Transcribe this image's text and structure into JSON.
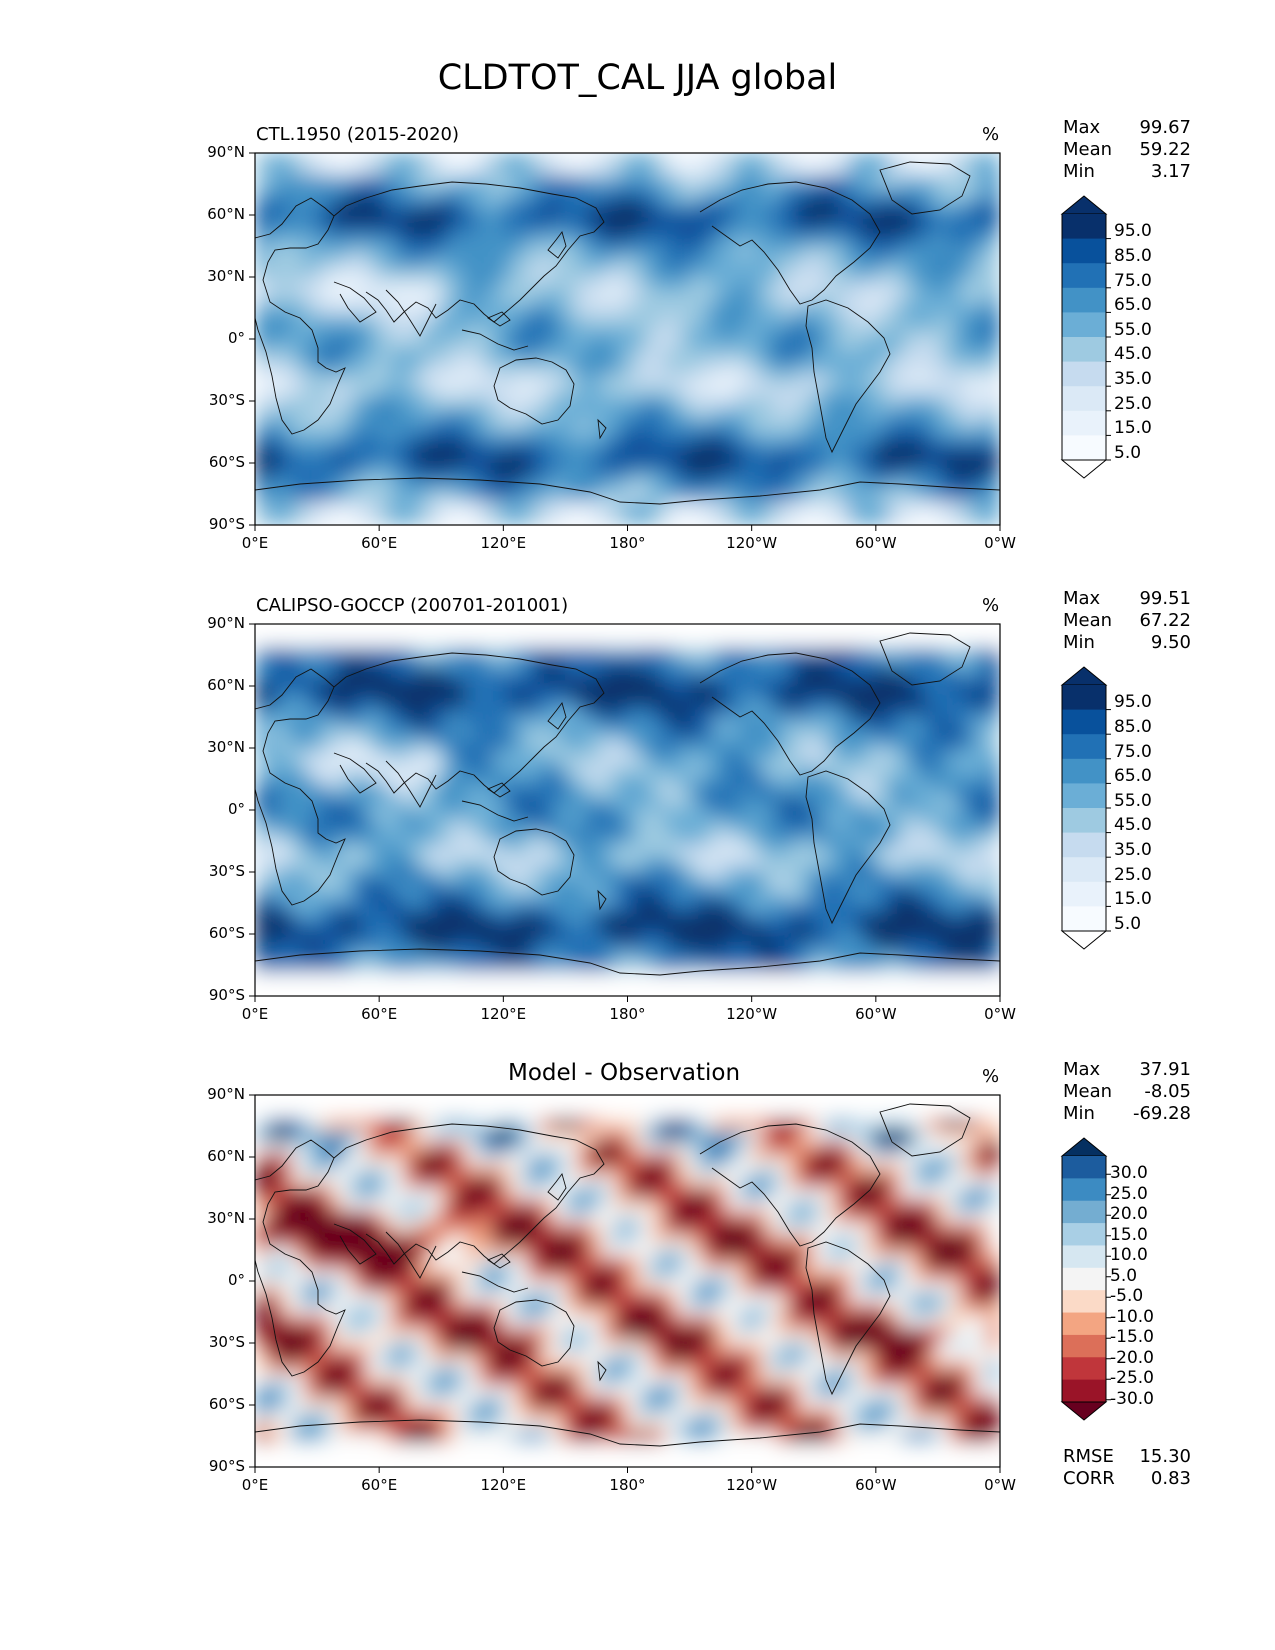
{
  "figure": {
    "title": "CLDTOT_CAL JJA global",
    "units": "%"
  },
  "chart_data": [
    {
      "type": "heatmap",
      "title": "CTL.1950 (2015-2020)",
      "units": "%",
      "colormap": "Blues",
      "stats": [
        {
          "label": "Max",
          "value": "99.67"
        },
        {
          "label": "Mean",
          "value": "59.22"
        },
        {
          "label": "Min",
          "value": "3.17"
        }
      ],
      "x_ticks": [
        "0°E",
        "60°E",
        "120°E",
        "180°",
        "120°W",
        "60°W",
        "0°W"
      ],
      "y_ticks": [
        "90°N",
        "60°N",
        "30°N",
        "0°",
        "30°S",
        "60°S",
        "90°S"
      ],
      "colorbar_levels": [
        "95.0",
        "85.0",
        "75.0",
        "65.0",
        "55.0",
        "45.0",
        "35.0",
        "25.0",
        "15.0",
        "5.0"
      ],
      "colorbar_colors": [
        "#08306b",
        "#08519c",
        "#2171b5",
        "#4292c6",
        "#6baed6",
        "#9ecae1",
        "#c6dbef",
        "#dbe9f6",
        "#e9f2fb",
        "#f7fbff"
      ]
    },
    {
      "type": "heatmap",
      "title": "CALIPSO-GOCCP (200701-201001)",
      "units": "%",
      "colormap": "Blues",
      "stats": [
        {
          "label": "Max",
          "value": "99.51"
        },
        {
          "label": "Mean",
          "value": "67.22"
        },
        {
          "label": "Min",
          "value": "9.50"
        }
      ],
      "x_ticks": [
        "0°E",
        "60°E",
        "120°E",
        "180°",
        "120°W",
        "60°W",
        "0°W"
      ],
      "y_ticks": [
        "90°N",
        "60°N",
        "30°N",
        "0°",
        "30°S",
        "60°S",
        "90°S"
      ],
      "colorbar_levels": [
        "95.0",
        "85.0",
        "75.0",
        "65.0",
        "55.0",
        "45.0",
        "35.0",
        "25.0",
        "15.0",
        "5.0"
      ],
      "colorbar_colors": [
        "#08306b",
        "#08519c",
        "#2171b5",
        "#4292c6",
        "#6baed6",
        "#9ecae1",
        "#c6dbef",
        "#dbe9f6",
        "#e9f2fb",
        "#f7fbff"
      ]
    },
    {
      "type": "heatmap",
      "title": "Model - Observation",
      "units": "%",
      "colormap": "RdBu",
      "stats": [
        {
          "label": "Max",
          "value": "37.91"
        },
        {
          "label": "Mean",
          "value": "-8.05"
        },
        {
          "label": "Min",
          "value": "-69.28"
        }
      ],
      "metrics": [
        {
          "label": "RMSE",
          "value": "15.30"
        },
        {
          "label": "CORR",
          "value": "0.83"
        }
      ],
      "x_ticks": [
        "0°E",
        "60°E",
        "120°E",
        "180°",
        "120°W",
        "60°W",
        "0°W"
      ],
      "y_ticks": [
        "90°N",
        "60°N",
        "30°N",
        "0°",
        "30°S",
        "60°S",
        "90°S"
      ],
      "colorbar_levels": [
        "30.0",
        "25.0",
        "20.0",
        "15.0",
        "10.0",
        "5.0",
        "-5.0",
        "-10.0",
        "-15.0",
        "-20.0",
        "-25.0",
        "-30.0"
      ],
      "colorbar_colors": [
        "#053061",
        "#1c5c9e",
        "#3c8bc2",
        "#74add1",
        "#a9cfe5",
        "#d6e7f1",
        "#f4f4f4",
        "#fbdac7",
        "#f3a582",
        "#dc6f59",
        "#c0363b",
        "#9a1428",
        "#67001f"
      ]
    }
  ]
}
